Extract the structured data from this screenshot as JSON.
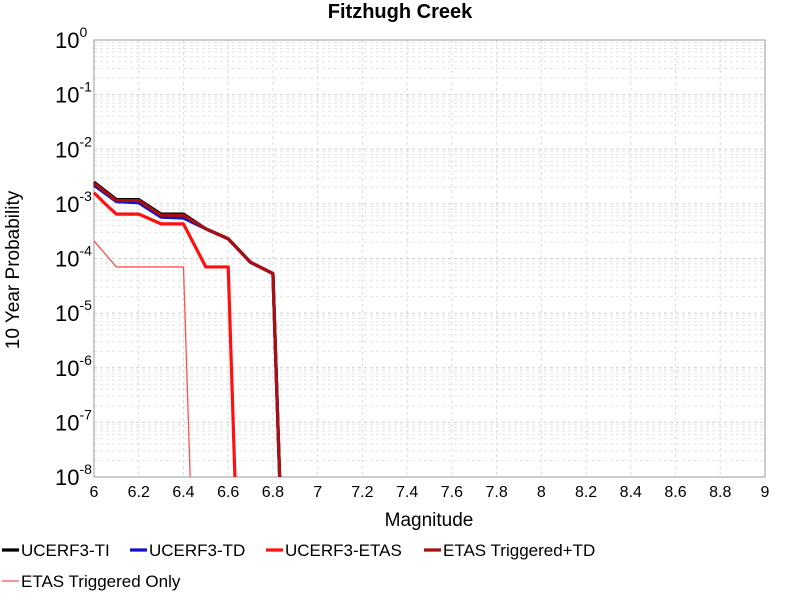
{
  "chart_data": {
    "type": "line",
    "title": "Fitzhugh Creek",
    "xlabel": "Magnitude",
    "ylabel": "10 Year Probability",
    "xlim": [
      6,
      9
    ],
    "ylim": [
      1e-08,
      1
    ],
    "yscale": "log",
    "grid": true,
    "legend_position": "bottom",
    "x_ticks": [
      "6",
      "6.2",
      "6.4",
      "6.6",
      "6.8",
      "7",
      "7.2",
      "7.4",
      "7.6",
      "7.8",
      "8",
      "8.2",
      "8.4",
      "8.6",
      "8.8",
      "9"
    ],
    "y_ticks": [
      {
        "base": "10",
        "exp": "0"
      },
      {
        "base": "10",
        "exp": "-1"
      },
      {
        "base": "10",
        "exp": "-2"
      },
      {
        "base": "10",
        "exp": "-3"
      },
      {
        "base": "10",
        "exp": "-4"
      },
      {
        "base": "10",
        "exp": "-5"
      },
      {
        "base": "10",
        "exp": "-6"
      },
      {
        "base": "10",
        "exp": "-7"
      },
      {
        "base": "10",
        "exp": "-8"
      }
    ],
    "series": [
      {
        "name": "UCERF3-TI",
        "color": "#000000",
        "style": "thick",
        "x": [
          6.0,
          6.1,
          6.2,
          6.3,
          6.4,
          6.5,
          6.6,
          6.7,
          6.8,
          6.83
        ],
        "y": [
          0.0025,
          0.0012,
          0.0012,
          0.00065,
          0.00065,
          0.00035,
          0.00023,
          8.5e-05,
          5.3e-05,
          1e-08
        ]
      },
      {
        "name": "UCERF3-TD",
        "color": "#1010d0",
        "style": "thick",
        "x": [
          6.0,
          6.1,
          6.2,
          6.3,
          6.4,
          6.5,
          6.6,
          6.7,
          6.8,
          6.83
        ],
        "y": [
          0.0022,
          0.0011,
          0.00105,
          0.00057,
          0.00055,
          0.00035,
          0.00023,
          8.5e-05,
          5.3e-05,
          1e-08
        ]
      },
      {
        "name": "UCERF3-ETAS",
        "color": "#ff1010",
        "style": "thick",
        "x": [
          6.0,
          6.05,
          6.1,
          6.2,
          6.3,
          6.4,
          6.5,
          6.6,
          6.63
        ],
        "y": [
          0.0016,
          0.001,
          0.00065,
          0.00065,
          0.00043,
          0.00043,
          7e-05,
          7e-05,
          1e-08
        ]
      },
      {
        "name": "ETAS Triggered+TD",
        "color": "#a81010",
        "style": "thick",
        "x": [
          6.0,
          6.1,
          6.2,
          6.3,
          6.4,
          6.5,
          6.6,
          6.7,
          6.8,
          6.83
        ],
        "y": [
          0.0024,
          0.00115,
          0.00115,
          0.00062,
          0.00062,
          0.00035,
          0.00023,
          8.5e-05,
          5.3e-05,
          1e-08
        ]
      },
      {
        "name": "ETAS Triggered Only",
        "color": "#ff5050",
        "style": "thin",
        "x": [
          6.0,
          6.1,
          6.2,
          6.3,
          6.4,
          6.43
        ],
        "y": [
          0.00021,
          7e-05,
          7e-05,
          7e-05,
          7e-05,
          1e-08
        ]
      }
    ]
  }
}
